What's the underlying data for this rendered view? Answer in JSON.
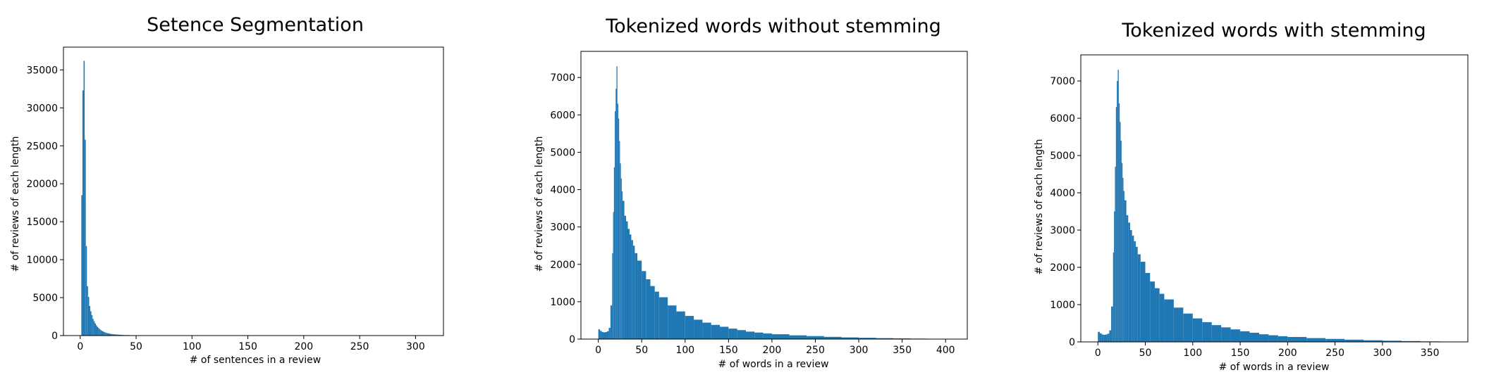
{
  "chart_data": [
    {
      "type": "bar",
      "title": "Setence Segmentation",
      "xlabel": "# of sentences in a review",
      "ylabel": "# of reviews of each length",
      "xlim": [
        -15,
        325
      ],
      "ylim": [
        0,
        38000
      ],
      "xticks": [
        0,
        50,
        100,
        150,
        200,
        250,
        300
      ],
      "yticks": [
        0,
        5000,
        10000,
        15000,
        20000,
        25000,
        30000,
        35000
      ],
      "bin_width": 1,
      "x": [
        1,
        2,
        3,
        4,
        5,
        6,
        7,
        8,
        9,
        10,
        11,
        12,
        13,
        14,
        15,
        16,
        17,
        18,
        19,
        20,
        21,
        22,
        23,
        24,
        25,
        26,
        27,
        28,
        29,
        30,
        32,
        34,
        36,
        38,
        40,
        45,
        50,
        55,
        60
      ],
      "values": [
        18500,
        32300,
        36200,
        25800,
        11800,
        6500,
        5100,
        3900,
        3200,
        2700,
        2200,
        1900,
        1600,
        1350,
        1150,
        1000,
        850,
        720,
        620,
        540,
        470,
        410,
        360,
        320,
        280,
        250,
        220,
        200,
        180,
        160,
        130,
        110,
        90,
        75,
        60,
        40,
        25,
        15,
        8
      ],
      "grid": false,
      "legend": false
    },
    {
      "type": "bar",
      "title": "Tokenized words without stemming",
      "xlabel": "# of words in a review",
      "ylabel": "# of reviews of each length",
      "xlim": [
        -20,
        425
      ],
      "ylim": [
        0,
        7700
      ],
      "xticks": [
        0,
        50,
        100,
        150,
        200,
        250,
        300,
        350,
        400
      ],
      "yticks": [
        0,
        1000,
        2000,
        3000,
        4000,
        5000,
        6000,
        7000
      ],
      "bin_width": 1,
      "x": [
        0,
        2,
        4,
        6,
        8,
        10,
        12,
        14,
        16,
        17,
        18,
        19,
        20,
        21,
        22,
        23,
        24,
        25,
        26,
        27,
        28,
        30,
        32,
        34,
        36,
        38,
        40,
        42,
        45,
        50,
        55,
        60,
        65,
        70,
        80,
        90,
        100,
        110,
        120,
        130,
        140,
        150,
        160,
        170,
        180,
        190,
        200,
        220,
        240,
        260,
        280,
        300,
        320,
        340,
        360,
        380,
        400,
        410
      ],
      "values": [
        260,
        220,
        190,
        180,
        190,
        210,
        300,
        900,
        2300,
        3400,
        4600,
        6100,
        6700,
        7300,
        6300,
        5900,
        5300,
        4700,
        4300,
        3950,
        3700,
        3300,
        3150,
        2950,
        2800,
        2650,
        2500,
        2300,
        2100,
        1820,
        1600,
        1420,
        1270,
        1120,
        900,
        740,
        620,
        520,
        440,
        380,
        330,
        280,
        240,
        200,
        175,
        150,
        130,
        100,
        80,
        60,
        45,
        35,
        25,
        18,
        12,
        8,
        5,
        3
      ],
      "grid": false,
      "legend": false
    },
    {
      "type": "bar",
      "title": "Tokenized words with stemming",
      "xlabel": "# of words in a review",
      "ylabel": "# of reviews of each length",
      "xlim": [
        -18,
        390
      ],
      "ylim": [
        0,
        7700
      ],
      "xticks": [
        0,
        50,
        100,
        150,
        200,
        250,
        300,
        350
      ],
      "yticks": [
        0,
        1000,
        2000,
        3000,
        4000,
        5000,
        6000,
        7000
      ],
      "bin_width": 1,
      "x": [
        0,
        2,
        4,
        6,
        8,
        10,
        12,
        14,
        16,
        17,
        18,
        19,
        20,
        21,
        22,
        23,
        24,
        25,
        26,
        27,
        28,
        30,
        32,
        34,
        36,
        38,
        40,
        42,
        45,
        50,
        55,
        60,
        65,
        70,
        80,
        90,
        100,
        110,
        120,
        130,
        140,
        150,
        160,
        170,
        180,
        190,
        200,
        220,
        240,
        260,
        280,
        300,
        320,
        340,
        360,
        370
      ],
      "values": [
        270,
        230,
        200,
        190,
        200,
        220,
        310,
        950,
        2400,
        3500,
        4700,
        6300,
        7000,
        7300,
        6400,
        5900,
        5400,
        4800,
        4400,
        4050,
        3800,
        3400,
        3200,
        3000,
        2850,
        2700,
        2550,
        2350,
        2150,
        1850,
        1620,
        1440,
        1290,
        1140,
        920,
        760,
        630,
        530,
        450,
        390,
        335,
        285,
        245,
        205,
        178,
        152,
        132,
        102,
        80,
        60,
        44,
        32,
        22,
        14,
        8,
        4
      ],
      "grid": false,
      "legend": false
    }
  ]
}
